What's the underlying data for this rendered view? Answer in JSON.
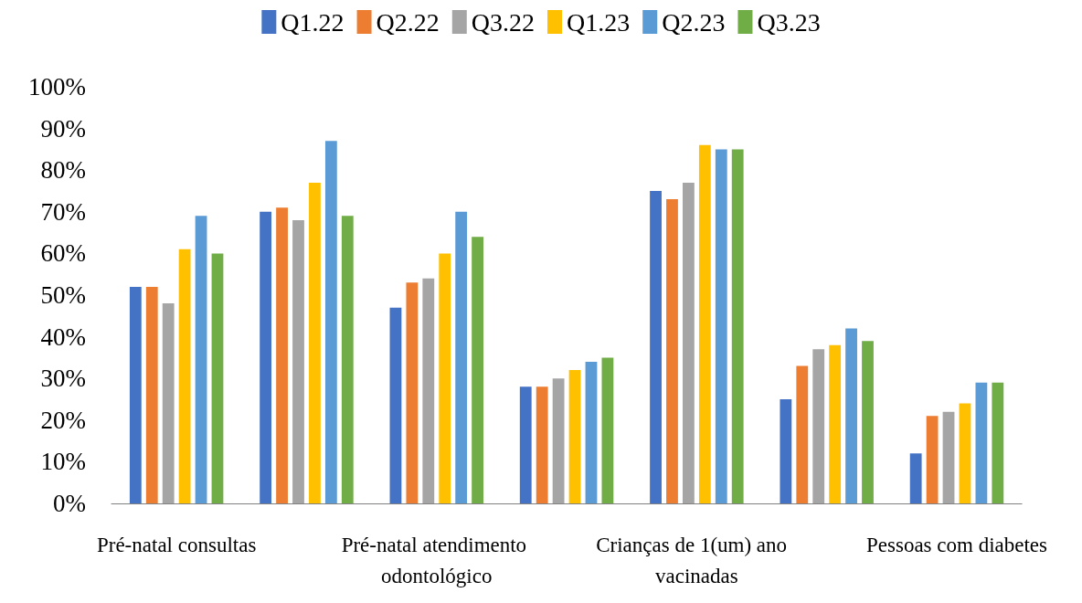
{
  "chart_data": {
    "type": "bar",
    "categories": [
      "Pré-natal consultas",
      null,
      "Pré-natal atendimento odontológico",
      null,
      "Crianças de 1(um) ano  vacinadas",
      null,
      "Pessoas com diabetes"
    ],
    "series": [
      {
        "name": "Q1.22",
        "color": "#4472c4",
        "values": [
          52,
          70,
          47,
          28,
          75,
          25,
          12
        ]
      },
      {
        "name": "Q2.22",
        "color": "#ed7d31",
        "values": [
          52,
          71,
          53,
          28,
          73,
          33,
          21
        ]
      },
      {
        "name": "Q3.22",
        "color": "#a5a5a5",
        "values": [
          48,
          68,
          54,
          30,
          77,
          37,
          22
        ]
      },
      {
        "name": "Q1.23",
        "color": "#ffc000",
        "values": [
          61,
          77,
          60,
          32,
          86,
          38,
          24
        ]
      },
      {
        "name": "Q2.23",
        "color": "#5b9bd5",
        "values": [
          69,
          87,
          70,
          34,
          85,
          42,
          29
        ]
      },
      {
        "name": "Q3.23",
        "color": "#70ad47",
        "values": [
          60,
          69,
          64,
          35,
          85,
          39,
          29
        ]
      }
    ],
    "ylim": [
      0,
      100
    ],
    "yticks": [
      {
        "value": 0,
        "label": "0%"
      },
      {
        "value": 10,
        "label": "10%"
      },
      {
        "value": 20,
        "label": "20%"
      },
      {
        "value": 30,
        "label": "30%"
      },
      {
        "value": 40,
        "label": "40%"
      },
      {
        "value": 50,
        "label": "50%"
      },
      {
        "value": 60,
        "label": "60%"
      },
      {
        "value": 70,
        "label": "70%"
      },
      {
        "value": 80,
        "label": "80%"
      },
      {
        "value": 90,
        "label": "90%"
      },
      {
        "value": 100,
        "label": "100%"
      }
    ],
    "grid": false,
    "legend": "top"
  }
}
